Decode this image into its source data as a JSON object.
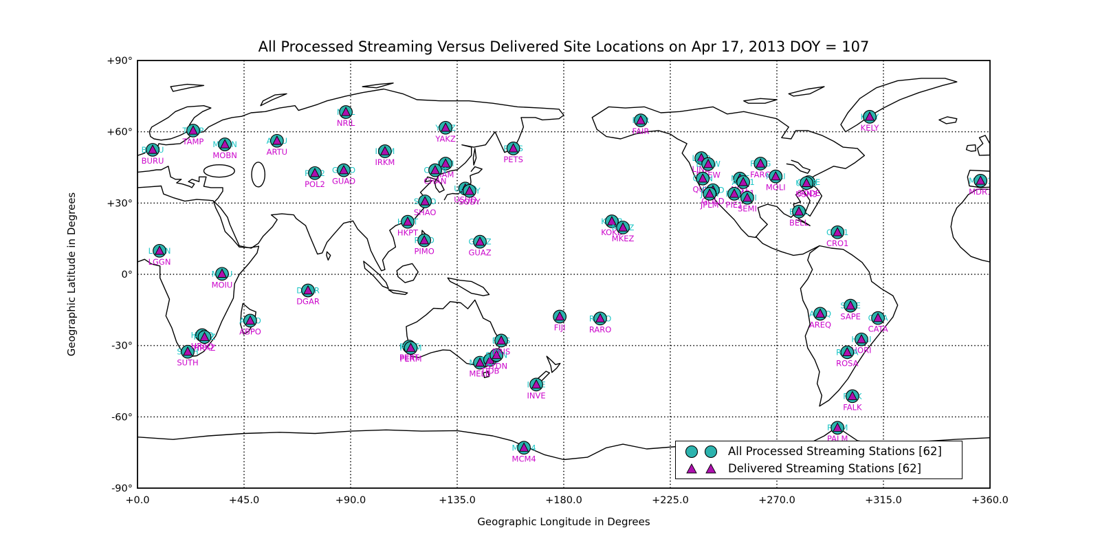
{
  "title": "All Processed Streaming Versus Delivered Site Locations on Apr 17, 2013 DOY = 107",
  "axes": {
    "xlabel": "Geographic Longitude in Degrees",
    "ylabel": "Geographic Latitude in Degrees",
    "x_tick_labels": [
      "+0.0",
      "+45.0",
      "+90.0",
      "+135.0",
      "+180.0",
      "+225.0",
      "+270.0",
      "+315.0",
      "+360.0"
    ],
    "y_tick_labels": [
      "+90°",
      "+60°",
      "+30°",
      "0°",
      "-30°",
      "-60°",
      "-90°"
    ]
  },
  "legend": {
    "items": [
      {
        "marker": "circle",
        "color": "#2cb3ae",
        "label": "All Processed Streaming Stations [62]"
      },
      {
        "marker": "triangle",
        "color": "#ae10ae",
        "label": "Delivered Streaming Stations [62]"
      }
    ]
  },
  "colors": {
    "circle_fill": "#2cb3ae",
    "triangle_fill": "#ae10ae",
    "cyan_label": "#19c5c5",
    "magenta_label": "#cb06cb",
    "coast": "#000000",
    "grid": "#000000"
  },
  "chart_data": {
    "type": "scatter",
    "title": "All Processed Streaming Versus Delivered Site Locations on Apr 17, 2013 DOY = 107",
    "xlabel": "Geographic Longitude in Degrees",
    "ylabel": "Geographic Latitude in Degrees",
    "xlim": [
      0,
      360
    ],
    "ylim": [
      -90,
      90
    ],
    "x_ticks": [
      0,
      45,
      90,
      135,
      180,
      225,
      270,
      315,
      360
    ],
    "y_ticks": [
      90,
      60,
      30,
      0,
      -30,
      -60,
      -90
    ],
    "grid": true,
    "legend_position": "lower right",
    "series": [
      {
        "name": "All Processed Streaming Stations [62]",
        "marker": "circle",
        "color": "#2cb3ae",
        "count": 62
      },
      {
        "name": "Delivered Streaming Stations [62]",
        "marker": "triangle",
        "color": "#ae10ae",
        "count": 62
      }
    ],
    "stations": [
      {
        "code": "TAMP",
        "lon": 23.5,
        "lat": 60.5
      },
      {
        "code": "BURU",
        "lon": 6.4,
        "lat": 52.4
      },
      {
        "code": "MOBN",
        "lon": 36.9,
        "lat": 54.7
      },
      {
        "code": "ARTU",
        "lon": 58.9,
        "lat": 56.2
      },
      {
        "code": "POL2",
        "lon": 74.9,
        "lat": 42.6
      },
      {
        "code": "GUAO",
        "lon": 87.1,
        "lat": 43.8
      },
      {
        "code": "IRKM",
        "lon": 104.5,
        "lat": 51.8
      },
      {
        "code": "NRIL",
        "lon": 88.0,
        "lat": 68.3
      },
      {
        "code": "YAKZ",
        "lon": 130.1,
        "lat": 61.7
      },
      {
        "code": "JIAM",
        "lon": 130.1,
        "lat": 46.6
      },
      {
        "code": "CHAN",
        "lon": 125.7,
        "lat": 43.8
      },
      {
        "code": "SHAO",
        "lon": 121.4,
        "lat": 30.7
      },
      {
        "code": "HKPT",
        "lon": 114.1,
        "lat": 22.1
      },
      {
        "code": "PIMO",
        "lon": 121.1,
        "lat": 14.3
      },
      {
        "code": "GUAZ",
        "lon": 144.6,
        "lat": 13.7
      },
      {
        "code": "USUD",
        "lon": 138.4,
        "lat": 36.1
      },
      {
        "code": "SODY",
        "lon": 140.2,
        "lat": 35.1
      },
      {
        "code": "PETS",
        "lon": 158.7,
        "lat": 53.0
      },
      {
        "code": "LGGN",
        "lon": 9.3,
        "lat": 9.9
      },
      {
        "code": "MOIU",
        "lon": 35.7,
        "lat": 0.2
      },
      {
        "code": "ABPO",
        "lon": 47.6,
        "lat": -19.5
      },
      {
        "code": "SUTH",
        "lon": 21.2,
        "lat": -32.6
      },
      {
        "code": "HRAO",
        "lon": 27.3,
        "lat": -25.6
      },
      {
        "code": "HRAZ",
        "lon": 28.3,
        "lat": -26.4
      },
      {
        "code": "DGAR",
        "lon": 72.0,
        "lat": -6.8
      },
      {
        "code": "PERT",
        "lon": 114.7,
        "lat": -30.4
      },
      {
        "code": "PERM",
        "lon": 115.4,
        "lat": -31.0
      },
      {
        "code": "MELB",
        "lon": 144.6,
        "lat": -37.2
      },
      {
        "code": "TIDB",
        "lon": 148.9,
        "lat": -36.0
      },
      {
        "code": "SYDN",
        "lon": 151.6,
        "lat": -34.0
      },
      {
        "code": "BRIS",
        "lon": 153.6,
        "lat": -27.9
      },
      {
        "code": "INVE",
        "lon": 168.4,
        "lat": -46.4
      },
      {
        "code": "FIJI",
        "lon": 178.3,
        "lat": -17.8
      },
      {
        "code": "RARO",
        "lon": 195.4,
        "lat": -18.6
      },
      {
        "code": "KOKB",
        "lon": 200.3,
        "lat": 22.3
      },
      {
        "code": "MKEZ",
        "lon": 205.0,
        "lat": 19.7
      },
      {
        "code": "FAIR",
        "lon": 212.5,
        "lat": 64.8
      },
      {
        "code": "LIND",
        "lon": 238.1,
        "lat": 48.9
      },
      {
        "code": "DREW",
        "lon": 241.0,
        "lat": 46.4
      },
      {
        "code": "QUIN",
        "lon": 238.7,
        "lat": 40.3
      },
      {
        "code": "GOLD",
        "lon": 243.0,
        "lat": 35.4
      },
      {
        "code": "JPLM",
        "lon": 241.6,
        "lat": 33.9
      },
      {
        "code": "NIST",
        "lon": 254.4,
        "lat": 40.3
      },
      {
        "code": "AMC1",
        "lon": 255.8,
        "lat": 38.8
      },
      {
        "code": "PIE1",
        "lon": 252.0,
        "lat": 33.9
      },
      {
        "code": "SEMI",
        "lon": 257.5,
        "lat": 32.2
      },
      {
        "code": "FARG",
        "lon": 263.1,
        "lat": 46.6
      },
      {
        "code": "MOLI",
        "lon": 269.5,
        "lat": 41.2
      },
      {
        "code": "GODE",
        "lon": 283.4,
        "lat": 38.8
      },
      {
        "code": "USN3",
        "lon": 282.5,
        "lat": 38.4
      },
      {
        "code": "BELL",
        "lon": 279.3,
        "lat": 26.4
      },
      {
        "code": "KELY",
        "lon": 309.2,
        "lat": 66.3
      },
      {
        "code": "CRO1",
        "lon": 295.6,
        "lat": 17.7
      },
      {
        "code": "AREQ",
        "lon": 288.3,
        "lat": -16.6
      },
      {
        "code": "SAPE",
        "lon": 301.1,
        "lat": -13.2
      },
      {
        "code": "CATA",
        "lon": 312.7,
        "lat": -18.4
      },
      {
        "code": "HORI",
        "lon": 305.7,
        "lat": -27.4
      },
      {
        "code": "ROSA",
        "lon": 299.7,
        "lat": -32.8
      },
      {
        "code": "FALK",
        "lon": 301.9,
        "lat": -51.3
      },
      {
        "code": "PALM",
        "lon": 295.6,
        "lat": -64.6
      },
      {
        "code": "MCM4",
        "lon": 163.2,
        "lat": -73.0
      },
      {
        "code": "MDR1",
        "lon": 356.0,
        "lat": 39.4
      }
    ]
  }
}
